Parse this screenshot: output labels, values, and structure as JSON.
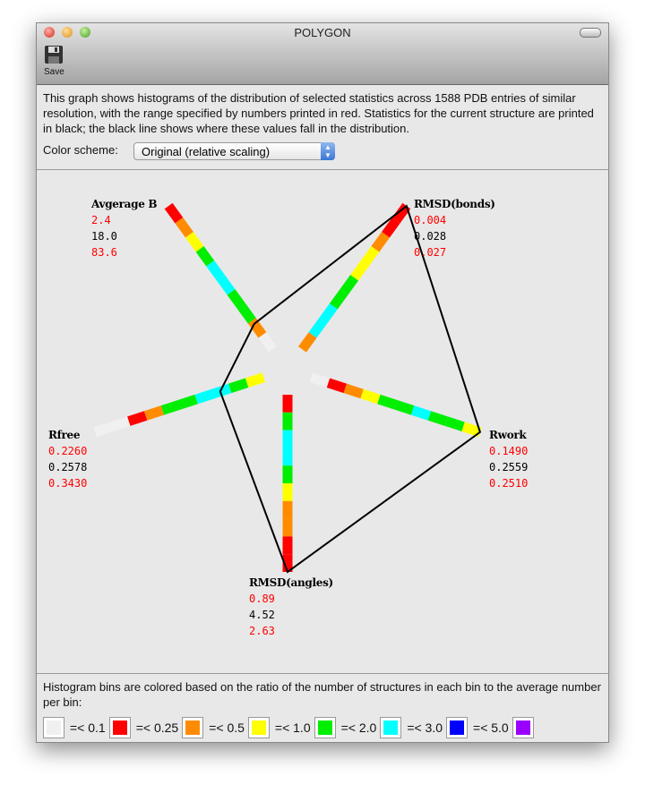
{
  "window": {
    "title": "POLYGON",
    "toolbar": {
      "save_label": "Save"
    }
  },
  "description": "This graph shows histograms of the distribution of selected statistics across 1588 PDB entries of similar resolution, with the range specified by numbers printed in red.  Statistics for the current structure are printed in black; the black line shows where these values fall in the distribution.",
  "color_scheme": {
    "label": "Color scheme:",
    "selected": "Original (relative scaling)"
  },
  "colors": {
    "white": "#f0f0f0",
    "red": "#ff0000",
    "orange": "#ff8c00",
    "yellow": "#ffff00",
    "green": "#00ee00",
    "cyan": "#00ffff",
    "blue": "#0000ff",
    "purple": "#9900ff"
  },
  "chart_data": {
    "type": "polygon-histogram",
    "axes": [
      {
        "name": "Avgerage B",
        "min": "2.4",
        "current": "18.0",
        "max": "83.6",
        "angle_deg": -126,
        "current_position": 0.28,
        "bins": [
          "white",
          "orange",
          "green",
          "green",
          "cyan",
          "cyan",
          "green",
          "yellow",
          "orange",
          "red"
        ]
      },
      {
        "name": "RMSD(bonds)",
        "min": "0.004",
        "current": "0.028",
        "max": "0.027",
        "angle_deg": -54,
        "current_position": 1.0,
        "bins": [
          "orange",
          "cyan",
          "cyan",
          "green",
          "green",
          "yellow",
          "yellow",
          "orange",
          "red",
          "red"
        ]
      },
      {
        "name": "Rwork",
        "min": "0.1490",
        "current": "0.2559",
        "max": "0.2510",
        "angle_deg": 18,
        "current_position": 1.0,
        "bins": [
          "white",
          "red",
          "orange",
          "yellow",
          "green",
          "green",
          "cyan",
          "green",
          "green",
          "yellow"
        ]
      },
      {
        "name": "RMSD(angles)",
        "min": "0.89",
        "current": "4.52",
        "max": "2.63",
        "angle_deg": 90,
        "current_position": 1.0,
        "bins": [
          "red",
          "green",
          "cyan",
          "cyan",
          "green",
          "yellow",
          "orange",
          "orange",
          "red",
          "red"
        ]
      },
      {
        "name": "Rfree",
        "min": "0.2260",
        "current": "0.2578",
        "max": "0.3430",
        "angle_deg": 162,
        "current_position": 0.35,
        "bins": [
          "yellow",
          "green",
          "cyan",
          "cyan",
          "green",
          "green",
          "orange",
          "red",
          "white",
          "white"
        ]
      }
    ]
  },
  "legend": {
    "text": "Histogram bins are colored based on the ratio of the number of structures in each bin to the average number per bin:",
    "items": [
      {
        "color": "white",
        "label": "=< 0.1"
      },
      {
        "color": "red",
        "label": "=< 0.25"
      },
      {
        "color": "orange",
        "label": "=< 0.5"
      },
      {
        "color": "yellow",
        "label": "=< 1.0"
      },
      {
        "color": "green",
        "label": "=< 2.0"
      },
      {
        "color": "cyan",
        "label": "=< 3.0"
      },
      {
        "color": "blue",
        "label": "=< 5.0"
      },
      {
        "color": "purple",
        "label": ""
      }
    ]
  }
}
